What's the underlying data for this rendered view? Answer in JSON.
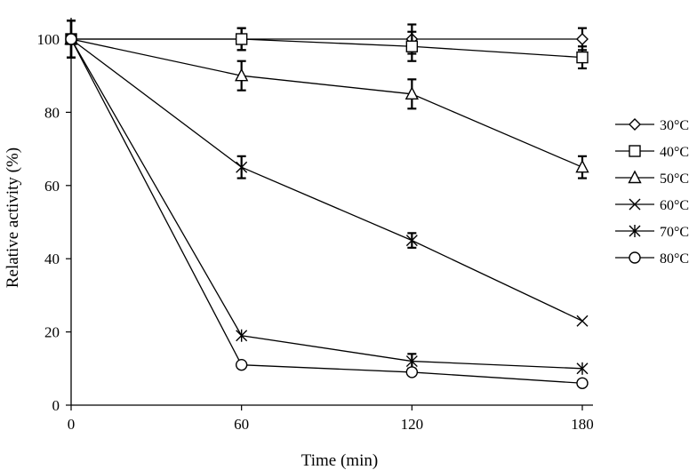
{
  "chart_data": {
    "type": "line",
    "xlabel": "Time (min)",
    "ylabel": "Relative activity (%)",
    "x": [
      0,
      60,
      120,
      180
    ],
    "xlim": [
      0,
      180
    ],
    "ylim": [
      0,
      100
    ],
    "xticks": [
      "0",
      "60",
      "120",
      "180"
    ],
    "yticks": [
      "0",
      "20",
      "40",
      "60",
      "80",
      "100"
    ],
    "grid": false,
    "legend_position": "right",
    "series": [
      {
        "name": "30°C",
        "marker": "diamond",
        "values": [
          100,
          100,
          100,
          100
        ],
        "errors": [
          5,
          3,
          4,
          3
        ]
      },
      {
        "name": "40°C",
        "marker": "square",
        "values": [
          100,
          100,
          98,
          95
        ],
        "errors": [
          5,
          3,
          4,
          3
        ]
      },
      {
        "name": "50°C",
        "marker": "triangle",
        "values": [
          100,
          90,
          85,
          65
        ],
        "errors": [
          5,
          4,
          4,
          3
        ]
      },
      {
        "name": "60°C",
        "marker": "x",
        "values": [
          100,
          65,
          45,
          23
        ],
        "errors": [
          5,
          3,
          2,
          0
        ]
      },
      {
        "name": "70°C",
        "marker": "star",
        "values": [
          100,
          19,
          12,
          10
        ],
        "errors": [
          5,
          0,
          2,
          0
        ]
      },
      {
        "name": "80°C",
        "marker": "circle",
        "values": [
          100,
          11,
          9,
          6
        ],
        "errors": [
          5,
          0,
          0,
          0
        ]
      }
    ]
  }
}
